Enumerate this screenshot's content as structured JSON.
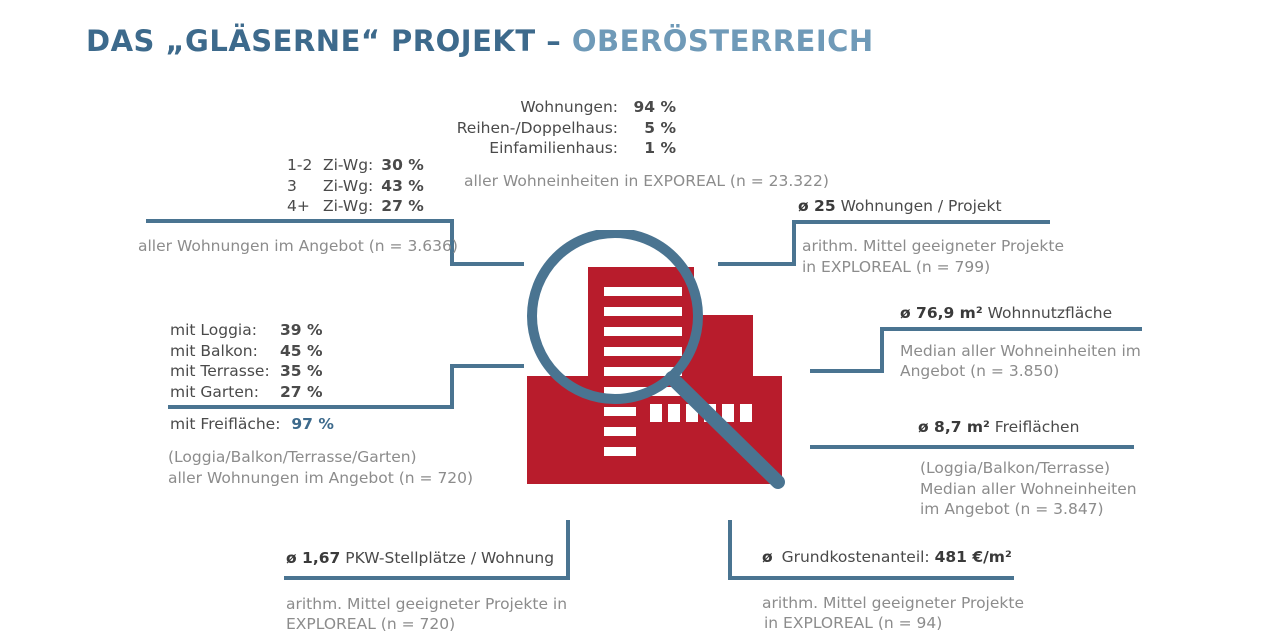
{
  "title": {
    "main": "DAS „GLÄSERNE“ PROJEKT –",
    "accent": "OBERÖSTERREICH"
  },
  "colors": {
    "title": "#3d6a8c",
    "accent": "#6f9ab8",
    "line": "#4a7491",
    "building": "#b81c2c",
    "magnifier": "#4a7491"
  },
  "icons": {
    "center": "magnifier-over-building-icon"
  },
  "top_center": {
    "rows": [
      {
        "label": "Wohnungen:",
        "value": "94 %"
      },
      {
        "label": "Reihen-/Doppelhaus:",
        "value": "5 %"
      },
      {
        "label": "Einfamilienhaus:",
        "value": "1 %"
      }
    ],
    "note": "aller Wohneinheiten in EXPOREAL (n = 23.322)"
  },
  "rooms": {
    "rows": [
      {
        "num": "1-2",
        "label": "Zi-Wg:",
        "value": "30 %"
      },
      {
        "num": "3",
        "label": "Zi-Wg:",
        "value": "43 %"
      },
      {
        "num": "4+",
        "label": "Zi-Wg:",
        "value": "27 %"
      }
    ],
    "note": "aller Wohnungen im Angebot (n = 3.636)"
  },
  "outdoor": {
    "rows": [
      {
        "label": "mit Loggia:",
        "value": "39 %"
      },
      {
        "label": "mit Balkon:",
        "value": "45 %"
      },
      {
        "label": "mit Terrasse:",
        "value": "35 %"
      },
      {
        "label": "mit Garten:",
        "value": "27 %"
      }
    ],
    "total_label": "mit Freifläche:",
    "total_value": "97 %",
    "note1": "(Loggia/Balkon/Terrasse/Garten)",
    "note2": "aller Wohnungen im Angebot (n = 720)"
  },
  "units": {
    "value": "ø 25",
    "label": "Wohnungen / Projekt",
    "note1": "arithm. Mittel geeigneter Projekte",
    "note2": "in EXPLOREAL (n = 799)"
  },
  "area": {
    "value": "ø 76,9 m²",
    "label": "Wohnnutzfläche",
    "note1": "Median aller Wohneinheiten im",
    "note2": "Angebot (n = 3.850)"
  },
  "free": {
    "value": "ø 8,7 m²",
    "label": "Freiflächen",
    "note1": "(Loggia/Balkon/Terrasse)",
    "note2": "Median aller Wohneinheiten",
    "note3": "im Angebot (n = 3.847)"
  },
  "parking": {
    "value": "ø 1,67",
    "label": "PKW-Stellplätze / Wohnung",
    "note1": "arithm. Mittel geeigneter Projekte in",
    "note2": "EXPLOREAL (n = 720)"
  },
  "land": {
    "prefix": "ø",
    "label": "Grundkostenanteil:",
    "value": "481 €/m²",
    "note1": "arithm. Mittel geeigneter Projekte",
    "note2": "in EXPLOREAL (n = 94)"
  }
}
